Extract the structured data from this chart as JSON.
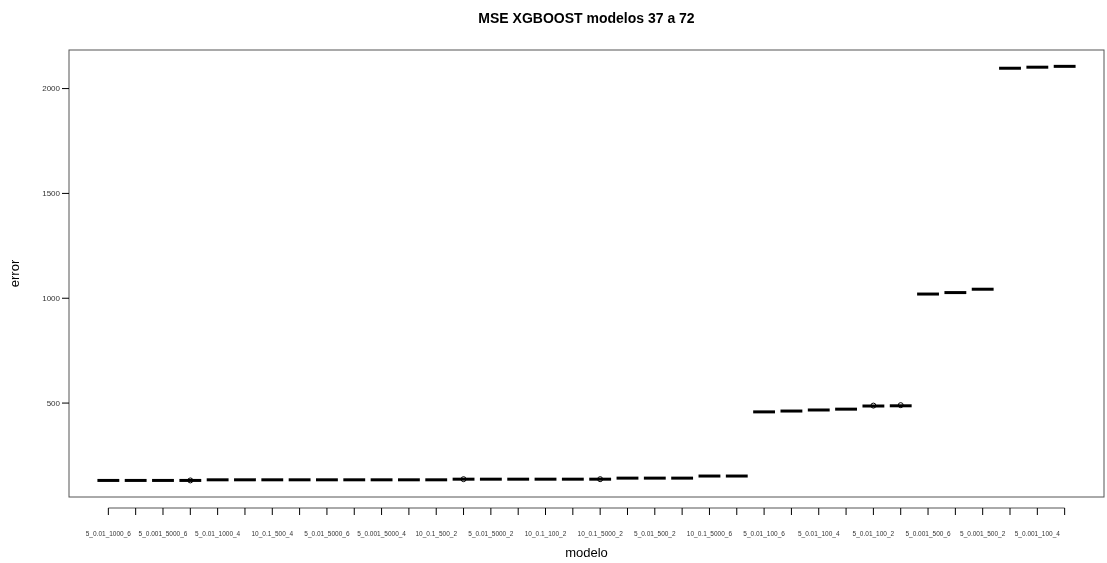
{
  "chart_data": {
    "type": "box",
    "title": "MSE XGBOOST modelos 37 a 72",
    "xlabel": "modelo",
    "ylabel": "error",
    "categories": [
      "5_0.01_1000_6",
      null,
      "5_0.001_5000_6",
      null,
      "5_0.01_1000_4",
      null,
      "10_0.1_500_4",
      null,
      "5_0.01_5000_6",
      null,
      "5_0.001_5000_4",
      null,
      "10_0.1_500_2",
      null,
      "5_0.01_5000_2",
      null,
      "10_0.1_100_2",
      null,
      "10_0.1_5000_2",
      null,
      "5_0.01_500_2",
      null,
      "10_0.1_5000_6",
      null,
      "5_0.01_100_6",
      null,
      "5_0.01_100_4",
      null,
      "5_0.01_100_2",
      null,
      "5_0.001_500_6",
      null,
      "5_0.001_500_2",
      null,
      "5_0.001_100_4",
      null
    ],
    "boxes": [
      {
        "low": 131,
        "q1": 131,
        "median": 131,
        "q3": 131,
        "high": 131
      },
      {
        "low": 131,
        "q1": 131,
        "median": 131,
        "q3": 131,
        "high": 131
      },
      {
        "low": 131,
        "q1": 131,
        "median": 131,
        "q3": 131,
        "high": 131
      },
      {
        "low": 131,
        "q1": 131,
        "median": 131,
        "q3": 131,
        "high": 131,
        "outliers": [
          131
        ]
      },
      {
        "low": 134,
        "q1": 134,
        "median": 134,
        "q3": 134,
        "high": 134
      },
      {
        "low": 134,
        "q1": 134,
        "median": 134,
        "q3": 134,
        "high": 134
      },
      {
        "low": 134,
        "q1": 134,
        "median": 134,
        "q3": 134,
        "high": 134
      },
      {
        "low": 134,
        "q1": 134,
        "median": 134,
        "q3": 134,
        "high": 134
      },
      {
        "low": 134,
        "q1": 134,
        "median": 134,
        "q3": 134,
        "high": 134
      },
      {
        "low": 134,
        "q1": 134,
        "median": 134,
        "q3": 134,
        "high": 134
      },
      {
        "low": 134,
        "q1": 134,
        "median": 134,
        "q3": 134,
        "high": 134
      },
      {
        "low": 134,
        "q1": 134,
        "median": 134,
        "q3": 134,
        "high": 134
      },
      {
        "low": 134,
        "q1": 134,
        "median": 134,
        "q3": 134,
        "high": 134
      },
      {
        "low": 137,
        "q1": 137,
        "median": 137,
        "q3": 137,
        "high": 137,
        "outliers": [
          137
        ]
      },
      {
        "low": 137,
        "q1": 137,
        "median": 137,
        "q3": 137,
        "high": 137
      },
      {
        "low": 137,
        "q1": 137,
        "median": 137,
        "q3": 137,
        "high": 137
      },
      {
        "low": 137,
        "q1": 137,
        "median": 137,
        "q3": 137,
        "high": 137
      },
      {
        "low": 137,
        "q1": 137,
        "median": 137,
        "q3": 137,
        "high": 137
      },
      {
        "low": 137,
        "q1": 137,
        "median": 137,
        "q3": 137,
        "high": 137,
        "outliers": [
          137
        ]
      },
      {
        "low": 142,
        "q1": 142,
        "median": 142,
        "q3": 142,
        "high": 142
      },
      {
        "low": 142,
        "q1": 142,
        "median": 142,
        "q3": 142,
        "high": 142
      },
      {
        "low": 142,
        "q1": 142,
        "median": 142,
        "q3": 142,
        "high": 142
      },
      {
        "low": 152,
        "q1": 152,
        "median": 152,
        "q3": 152,
        "high": 152
      },
      {
        "low": 152,
        "q1": 152,
        "median": 152,
        "q3": 152,
        "high": 152
      },
      {
        "low": 458,
        "q1": 458,
        "median": 458,
        "q3": 458,
        "high": 458
      },
      {
        "low": 462,
        "q1": 462,
        "median": 462,
        "q3": 462,
        "high": 462
      },
      {
        "low": 467,
        "q1": 467,
        "median": 467,
        "q3": 467,
        "high": 467
      },
      {
        "low": 471,
        "q1": 471,
        "median": 471,
        "q3": 471,
        "high": 471
      },
      {
        "low": 486,
        "q1": 486,
        "median": 486,
        "q3": 486,
        "high": 486,
        "outliers": [
          488
        ]
      },
      {
        "low": 487,
        "q1": 487,
        "median": 487,
        "q3": 487,
        "high": 487,
        "outliers": [
          490
        ]
      },
      {
        "low": 1020,
        "q1": 1020,
        "median": 1020,
        "q3": 1020,
        "high": 1020
      },
      {
        "low": 1027,
        "q1": 1027,
        "median": 1027,
        "q3": 1027,
        "high": 1027
      },
      {
        "low": 1043,
        "q1": 1043,
        "median": 1043,
        "q3": 1043,
        "high": 1043
      },
      {
        "low": 2097,
        "q1": 2097,
        "median": 2097,
        "q3": 2097,
        "high": 2097
      },
      {
        "low": 2102,
        "q1": 2102,
        "median": 2102,
        "q3": 2102,
        "high": 2102
      },
      {
        "low": 2106,
        "q1": 2106,
        "median": 2106,
        "q3": 2106,
        "high": 2106
      }
    ],
    "ylim": [
      52,
      2184
    ],
    "yticks": [
      500,
      1000,
      1500,
      2000
    ]
  }
}
